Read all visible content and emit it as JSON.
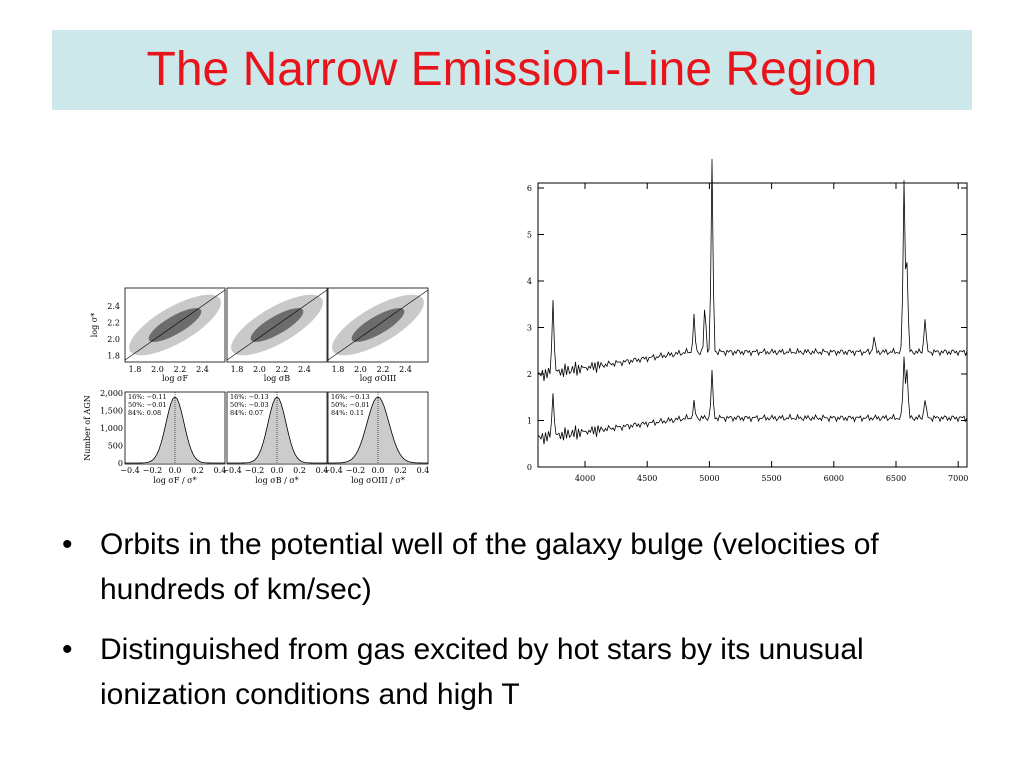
{
  "title": "The Narrow Emission-Line Region",
  "bullets": [
    "Orbits in the potential well of the galaxy bulge (velocities of hundreds of km/sec)",
    "Distinguished from gas excited by hot stars by its unusual ionization conditions and high T"
  ],
  "figure_left": {
    "scatter": {
      "y_label": "log σ*",
      "yticks": [
        "2.4",
        "2.2",
        "2.0",
        "1.8"
      ],
      "xticks": [
        "1.8",
        "2.0",
        "2.2",
        "2.4"
      ],
      "x_labels": [
        "log σF",
        "log σB",
        "log σOIII"
      ]
    },
    "histogram": {
      "y_label": "Number of AGN",
      "yticks": [
        "2,000",
        "1,500",
        "1,000",
        "500",
        "0"
      ],
      "xticks": [
        "−0.4",
        "−0.2",
        "0.0",
        "0.2",
        "0.4"
      ],
      "x_labels": [
        "log σF / σ*",
        "log σB / σ*",
        "log σOIII / σ*"
      ],
      "stats": [
        [
          "16%: −0.11",
          "50%: −0.01",
          "84%: 0.08"
        ],
        [
          "16%: −0.13",
          "50%: −0.03",
          "84%: 0.07"
        ],
        [
          "16%: −0.13",
          "50%: −0.01",
          "84%: 0.11"
        ]
      ]
    }
  },
  "figure_right": {
    "yticks": [
      "0",
      "1",
      "2",
      "3",
      "4",
      "5",
      "6"
    ],
    "xticks": [
      "4000",
      "4500",
      "5000",
      "5500",
      "6000",
      "6500",
      "7000"
    ]
  }
}
